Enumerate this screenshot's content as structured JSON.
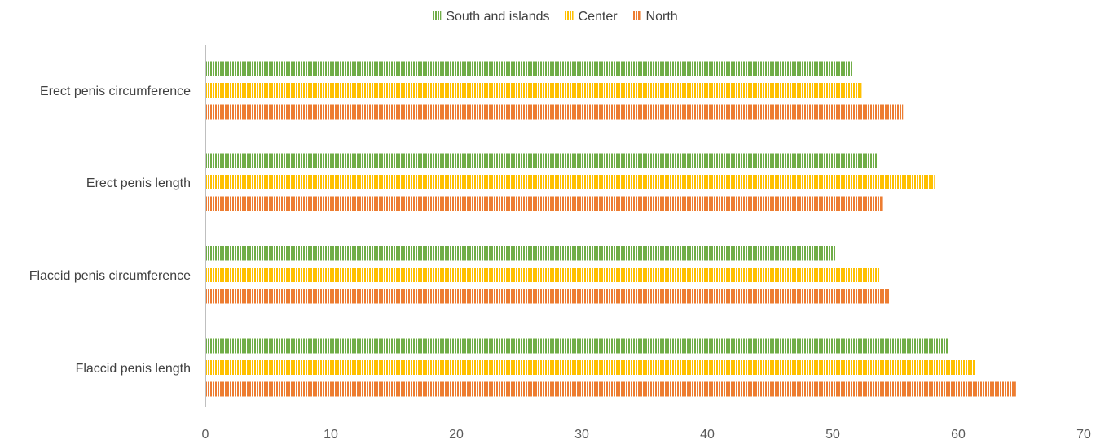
{
  "chart_data": {
    "type": "bar",
    "orientation": "horizontal",
    "categories": [
      "Erect penis circumference",
      "Erect penis length",
      "Flaccid penis circumference",
      "Flaccid penis length"
    ],
    "series": [
      {
        "name": "South and islands",
        "color": "#70AD47",
        "values": [
          51.5,
          53.6,
          50.2,
          59.2
        ]
      },
      {
        "name": "Center",
        "color": "#FFC000",
        "values": [
          52.3,
          58.1,
          53.7,
          61.3
        ]
      },
      {
        "name": "North",
        "color": "#ED7D31",
        "values": [
          55.6,
          54.0,
          54.5,
          64.6
        ]
      }
    ],
    "xlim": [
      0,
      70
    ],
    "x_ticks": [
      0,
      10,
      20,
      30,
      40,
      50,
      60,
      70
    ],
    "legend_position": "top-center",
    "grid": false,
    "bar_fill": "vertical-stripes"
  }
}
